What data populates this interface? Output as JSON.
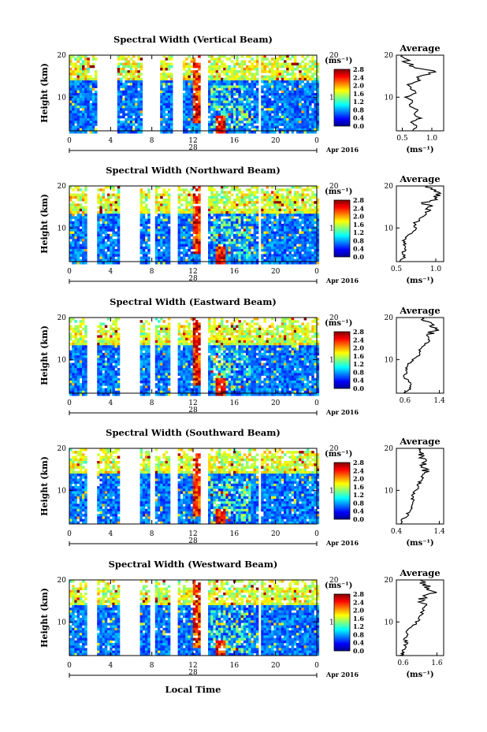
{
  "chart_data": {
    "type": "heatmap",
    "figure_xlabel": "Local Time",
    "panels": [
      {
        "title": "Spectral Width (Vertical Beam)",
        "ylabel": "Height (km)",
        "ylim": [
          2,
          20
        ],
        "yticks": [
          "20",
          "10"
        ],
        "xlim": [
          0,
          24
        ],
        "xticks": [
          "0",
          "4",
          "8",
          "12",
          "16",
          "20",
          "0"
        ],
        "day_label": "28",
        "date_label": "Apr 2016",
        "colorbar": {
          "unit_label": "(ms⁻¹)",
          "range": [
            0.0,
            2.8
          ],
          "ticks": [
            "2.8",
            "2.4",
            "2.0",
            "1.6",
            "1.2",
            "0.8",
            "0.4",
            "0.0"
          ]
        },
        "average": {
          "title": "Average",
          "xlabel": "(ms⁻¹)",
          "xlim": [
            0.4,
            1.2
          ],
          "xticks": [
            "0.5",
            "1.0"
          ],
          "ylim": [
            2,
            20
          ],
          "yticks": [
            "20",
            "10"
          ],
          "height_km": [
            2,
            3,
            4,
            5,
            6,
            7,
            8,
            9,
            10,
            11,
            12,
            13,
            14,
            15,
            16,
            17,
            18,
            19,
            20
          ],
          "values": [
            0.65,
            0.75,
            0.65,
            0.8,
            0.7,
            0.75,
            0.6,
            0.7,
            0.55,
            0.75,
            0.65,
            0.6,
            0.8,
            0.75,
            1.1,
            0.7,
            0.6,
            0.55,
            0.5
          ]
        },
        "data_gaps_hours": [
          [
            2.6,
            4.5
          ],
          [
            7.0,
            8.6
          ],
          [
            9.8,
            11.0
          ],
          [
            12.6,
            13.3
          ],
          [
            18.2,
            18.5
          ]
        ]
      },
      {
        "title": "Spectral Width (Northward Beam)",
        "ylabel": "Height (km)",
        "ylim": [
          2,
          20
        ],
        "yticks": [
          "20",
          "10"
        ],
        "xlim": [
          0,
          24
        ],
        "xticks": [
          "0",
          "4",
          "8",
          "12",
          "16",
          "20",
          "0"
        ],
        "day_label": "28",
        "date_label": "Apr 2016",
        "colorbar": {
          "unit_label": "(ms⁻¹)",
          "range": [
            0.0,
            2.8
          ],
          "ticks": [
            "2.8",
            "2.4",
            "2.0",
            "1.6",
            "1.2",
            "0.8",
            "0.4",
            "0.0"
          ]
        },
        "average": {
          "title": "Average",
          "xlabel": "(ms⁻¹)",
          "xlim": [
            0.5,
            1.1
          ],
          "xticks": [
            "0.5",
            "1.0"
          ],
          "ylim": [
            2,
            20
          ],
          "yticks": [
            "20",
            "10"
          ],
          "height_km": [
            2,
            3,
            4,
            5,
            6,
            7,
            8,
            9,
            10,
            11,
            12,
            13,
            14,
            15,
            16,
            17,
            18,
            19,
            20
          ],
          "values": [
            0.55,
            0.6,
            0.58,
            0.62,
            0.6,
            0.6,
            0.62,
            0.7,
            0.75,
            0.72,
            0.8,
            0.85,
            0.9,
            0.95,
            0.85,
            1.0,
            1.05,
            0.95,
            0.9
          ]
        },
        "data_gaps_hours": [
          [
            1.6,
            2.5
          ],
          [
            4.8,
            6.8
          ],
          [
            7.6,
            8.2
          ],
          [
            9.6,
            10.4
          ],
          [
            12.6,
            13.3
          ],
          [
            18.2,
            18.5
          ]
        ]
      },
      {
        "title": "Spectral Width (Eastward Beam)",
        "ylabel": "Height (km)",
        "ylim": [
          2,
          20
        ],
        "yticks": [
          "20",
          "10"
        ],
        "xlim": [
          0,
          24
        ],
        "xticks": [
          "0",
          "4",
          "8",
          "12",
          "16",
          "20",
          "0"
        ],
        "day_label": "28",
        "date_label": "Apr 2016",
        "colorbar": {
          "unit_label": "(ms⁻¹)",
          "range": [
            0.0,
            2.8
          ],
          "ticks": [
            "2.8",
            "2.4",
            "2.0",
            "1.6",
            "1.2",
            "0.8",
            "0.4",
            "0.0"
          ]
        },
        "average": {
          "title": "Average",
          "xlabel": "",
          "xlim": [
            0.4,
            1.5
          ],
          "xticks": [
            "0.6",
            "1.4"
          ],
          "ylim": [
            2,
            20
          ],
          "yticks": [
            "20",
            "10"
          ],
          "height_km": [
            2,
            3,
            4,
            5,
            6,
            7,
            8,
            9,
            10,
            11,
            12,
            13,
            14,
            15,
            16,
            17,
            18,
            19,
            20
          ],
          "values": [
            0.6,
            0.7,
            0.75,
            0.65,
            0.6,
            0.62,
            0.65,
            0.7,
            0.8,
            0.9,
            0.95,
            1.0,
            1.1,
            1.25,
            1.15,
            1.3,
            1.2,
            1.1,
            1.0
          ]
        },
        "data_gaps_hours": [
          [
            1.6,
            2.5
          ],
          [
            4.8,
            6.8
          ],
          [
            7.6,
            8.2
          ],
          [
            9.6,
            10.4
          ],
          [
            12.6,
            13.3
          ]
        ]
      },
      {
        "title": "Spectral Width (Southward Beam)",
        "ylabel": "Height (km)",
        "ylim": [
          2,
          20
        ],
        "yticks": [
          "20",
          "10"
        ],
        "xlim": [
          0,
          24
        ],
        "xticks": [
          "0",
          "4",
          "8",
          "12",
          "16",
          "20",
          "0"
        ],
        "day_label": "28",
        "date_label": "Apr 2016",
        "colorbar": {
          "unit_label": "(ms⁻¹)",
          "range": [
            0.0,
            2.8
          ],
          "ticks": [
            "2.8",
            "2.4",
            "2.0",
            "1.6",
            "1.2",
            "0.8",
            "0.4",
            "0.0"
          ]
        },
        "average": {
          "title": "Average",
          "xlabel": "(ms⁻¹)",
          "xlim": [
            0.4,
            1.5
          ],
          "xticks": [
            "0.4",
            "1.4"
          ],
          "ylim": [
            2,
            20
          ],
          "yticks": [
            "20",
            "10"
          ],
          "height_km": [
            2,
            3,
            4,
            5,
            6,
            7,
            8,
            9,
            10,
            11,
            12,
            13,
            14,
            15,
            16,
            17,
            18,
            19,
            20
          ],
          "values": [
            0.5,
            0.55,
            0.65,
            0.7,
            0.75,
            0.8,
            0.78,
            0.8,
            0.85,
            0.9,
            0.95,
            1.0,
            1.05,
            1.1,
            1.05,
            1.1,
            1.0,
            0.95,
            0.9
          ]
        },
        "data_gaps_hours": [
          [
            1.6,
            2.5
          ],
          [
            4.8,
            6.8
          ],
          [
            7.6,
            8.2
          ],
          [
            9.6,
            10.4
          ],
          [
            12.6,
            13.3
          ],
          [
            18.2,
            18.5
          ]
        ]
      },
      {
        "title": "Spectral Width (Westward Beam)",
        "ylabel": "Height (km)",
        "ylim": [
          2,
          20
        ],
        "yticks": [
          "20",
          "10"
        ],
        "xlim": [
          0,
          24
        ],
        "xticks": [
          "0",
          "4",
          "8",
          "12",
          "16",
          "20",
          "0"
        ],
        "day_label": "28",
        "date_label": "Apr 2016",
        "colorbar": {
          "unit_label": "(ms⁻¹)",
          "range": [
            0.0,
            2.8
          ],
          "ticks": [
            "2.8",
            "2.4",
            "2.0",
            "1.6",
            "1.2",
            "0.8",
            "0.4",
            "0.0"
          ]
        },
        "average": {
          "title": "Average",
          "xlabel": "(ms⁻¹)",
          "xlim": [
            0.4,
            1.8
          ],
          "xticks": [
            "0.6",
            "1.6"
          ],
          "ylim": [
            2,
            20
          ],
          "yticks": [
            "20",
            "10"
          ],
          "height_km": [
            2,
            3,
            4,
            5,
            6,
            7,
            8,
            9,
            10,
            11,
            12,
            13,
            14,
            15,
            16,
            17,
            18,
            19,
            20
          ],
          "values": [
            0.55,
            0.6,
            0.65,
            0.7,
            0.65,
            0.7,
            0.75,
            0.9,
            1.0,
            1.1,
            1.15,
            1.2,
            1.3,
            1.1,
            1.25,
            1.5,
            1.4,
            1.2,
            1.1
          ]
        },
        "data_gaps_hours": [
          [
            1.6,
            2.5
          ],
          [
            4.8,
            6.8
          ],
          [
            7.6,
            8.2
          ],
          [
            9.6,
            10.4
          ],
          [
            12.6,
            13.3
          ],
          [
            18.2,
            18.5
          ]
        ]
      }
    ]
  }
}
